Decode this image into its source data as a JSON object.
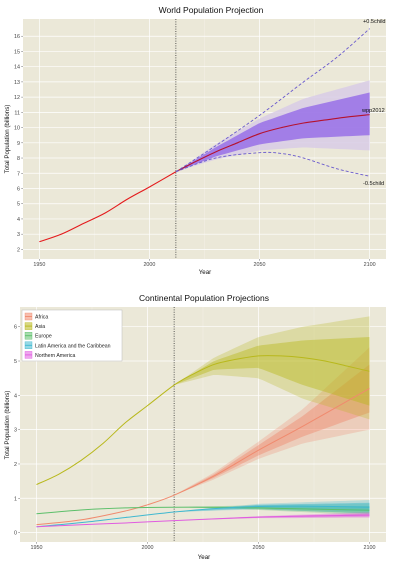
{
  "chart_data": [
    {
      "type": "line",
      "title": "World Population Projection",
      "xlabel": "Year",
      "ylabel": "Total Population (billions)",
      "xlim": [
        1950,
        2100
      ],
      "ylim": [
        2,
        16.5
      ],
      "xticks": [
        1950,
        2000,
        2050,
        2100
      ],
      "yticks": [
        2,
        3,
        4,
        5,
        6,
        7,
        8,
        9,
        10,
        11,
        12,
        13,
        14,
        15,
        16
      ],
      "vline_x": 2012,
      "grid": true,
      "historical": {
        "x": [
          1950,
          1960,
          1970,
          1980,
          1990,
          2000,
          2012
        ],
        "y": [
          2.5,
          3.0,
          3.7,
          4.4,
          5.3,
          6.1,
          7.1
        ]
      },
      "median": {
        "x": [
          2012,
          2020,
          2030,
          2040,
          2050,
          2060,
          2070,
          2080,
          2090,
          2100
        ],
        "y": [
          7.1,
          7.7,
          8.4,
          9.0,
          9.6,
          10.0,
          10.3,
          10.5,
          10.7,
          10.85
        ]
      },
      "band95": {
        "x": [
          2012,
          2030,
          2050,
          2070,
          2100
        ],
        "lo": [
          7.1,
          7.9,
          8.5,
          8.7,
          8.5
        ],
        "hi": [
          7.1,
          8.9,
          10.6,
          11.9,
          13.1
        ]
      },
      "band80": {
        "x": [
          2012,
          2030,
          2050,
          2070,
          2100
        ],
        "lo": [
          7.1,
          8.1,
          8.9,
          9.3,
          9.5
        ],
        "hi": [
          7.1,
          8.7,
          10.3,
          11.3,
          12.3
        ]
      },
      "high_variant": {
        "x": [
          2012,
          2030,
          2050,
          2070,
          2085,
          2100
        ],
        "y": [
          7.1,
          8.8,
          10.8,
          13.0,
          14.6,
          16.5
        ]
      },
      "low_variant": {
        "x": [
          2012,
          2030,
          2050,
          2060,
          2070,
          2085,
          2100
        ],
        "y": [
          7.1,
          8.0,
          8.35,
          8.3,
          8.0,
          7.3,
          6.8
        ]
      },
      "labels": {
        "high": "+0.5child",
        "median": "wpp2012",
        "low": "-0.5child"
      },
      "colors": {
        "panel": "#ebe8d8",
        "grid": "#ffffff",
        "historical": "#e41a1c",
        "median": "#b5122e",
        "band95": "#d8cbe6",
        "band80": "#8f63e8",
        "variant": "#6a5acd",
        "vline": "#333333"
      }
    },
    {
      "type": "line",
      "title": "Continental Population Projections",
      "xlabel": "Year",
      "ylabel": "Total Population (billions)",
      "xlim": [
        1950,
        2100
      ],
      "ylim": [
        0,
        6.3
      ],
      "xticks": [
        1950,
        2000,
        2050,
        2100
      ],
      "yticks": [
        0,
        1,
        2,
        3,
        4,
        5,
        6
      ],
      "vline_x": 2012,
      "grid": true,
      "legend": "top-left",
      "series": [
        {
          "name": "Africa",
          "color": "#f08a6e",
          "x": [
            1950,
            1970,
            1990,
            2000,
            2012,
            2030,
            2050,
            2070,
            2100
          ],
          "y": [
            0.23,
            0.37,
            0.63,
            0.81,
            1.09,
            1.65,
            2.4,
            3.1,
            4.2
          ],
          "band95": {
            "x": [
              2012,
              2030,
              2050,
              2070,
              2100
            ],
            "lo": [
              1.09,
              1.55,
              2.15,
              2.6,
              3.0
            ],
            "hi": [
              1.09,
              1.75,
              2.65,
              3.6,
              5.4
            ]
          },
          "band80": {
            "x": [
              2012,
              2030,
              2050,
              2070,
              2100
            ],
            "lo": [
              1.09,
              1.6,
              2.25,
              2.8,
              3.5
            ],
            "hi": [
              1.09,
              1.7,
              2.55,
              3.4,
              4.9
            ]
          }
        },
        {
          "name": "Asia",
          "color": "#b8b81c",
          "x": [
            1950,
            1960,
            1970,
            1980,
            1990,
            2000,
            2012,
            2020,
            2030,
            2040,
            2050,
            2060,
            2070,
            2080,
            2090,
            2100
          ],
          "y": [
            1.4,
            1.7,
            2.1,
            2.6,
            3.2,
            3.7,
            4.3,
            4.6,
            4.9,
            5.05,
            5.15,
            5.15,
            5.1,
            5.0,
            4.85,
            4.7
          ],
          "band95": {
            "x": [
              2012,
              2030,
              2050,
              2070,
              2100
            ],
            "lo": [
              4.3,
              4.6,
              4.5,
              3.9,
              3.3
            ],
            "hi": [
              4.3,
              5.1,
              5.7,
              6.0,
              6.3
            ]
          },
          "band80": {
            "x": [
              2012,
              2030,
              2050,
              2070,
              2100
            ],
            "lo": [
              4.3,
              4.75,
              4.8,
              4.3,
              3.7
            ],
            "hi": [
              4.3,
              5.0,
              5.45,
              5.6,
              5.7
            ]
          }
        },
        {
          "name": "Europe",
          "color": "#5cbf6a",
          "x": [
            1950,
            1970,
            1990,
            2012,
            2030,
            2050,
            2070,
            2100
          ],
          "y": [
            0.55,
            0.66,
            0.72,
            0.74,
            0.74,
            0.72,
            0.69,
            0.65
          ],
          "band95": {
            "x": [
              2012,
              2050,
              2100
            ],
            "lo": [
              0.74,
              0.66,
              0.5
            ],
            "hi": [
              0.74,
              0.8,
              0.85
            ]
          },
          "band80": {
            "x": [
              2012,
              2050,
              2100
            ],
            "lo": [
              0.74,
              0.68,
              0.56
            ],
            "hi": [
              0.74,
              0.77,
              0.77
            ]
          }
        },
        {
          "name": "Latin America and the Caribbean",
          "color": "#3fb8d0",
          "x": [
            1950,
            1970,
            1990,
            2012,
            2030,
            2050,
            2070,
            2100
          ],
          "y": [
            0.17,
            0.29,
            0.44,
            0.6,
            0.7,
            0.76,
            0.77,
            0.74
          ],
          "band95": {
            "x": [
              2012,
              2050,
              2100
            ],
            "lo": [
              0.6,
              0.68,
              0.55
            ],
            "hi": [
              0.6,
              0.84,
              0.95
            ]
          },
          "band80": {
            "x": [
              2012,
              2050,
              2100
            ],
            "lo": [
              0.6,
              0.71,
              0.62
            ],
            "hi": [
              0.6,
              0.81,
              0.87
            ]
          }
        },
        {
          "name": "Northern America",
          "color": "#e05ce0",
          "x": [
            1950,
            1970,
            1990,
            2012,
            2030,
            2050,
            2070,
            2100
          ],
          "y": [
            0.17,
            0.23,
            0.28,
            0.35,
            0.4,
            0.45,
            0.48,
            0.51
          ],
          "band95": {
            "x": [
              2012,
              2050,
              2100
            ],
            "lo": [
              0.35,
              0.42,
              0.43
            ],
            "hi": [
              0.35,
              0.48,
              0.6
            ]
          },
          "band80": {
            "x": [
              2012,
              2050,
              2100
            ],
            "lo": [
              0.35,
              0.43,
              0.46
            ],
            "hi": [
              0.35,
              0.47,
              0.56
            ]
          }
        }
      ],
      "colors": {
        "panel": "#ebe8d8",
        "grid": "#ffffff",
        "vline": "#333333"
      }
    }
  ]
}
